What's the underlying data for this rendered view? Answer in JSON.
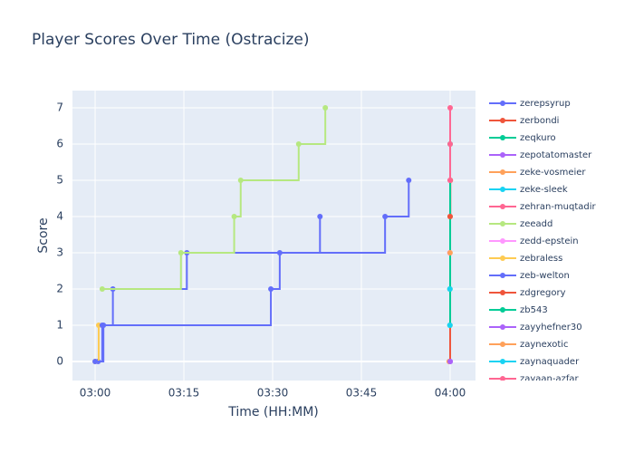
{
  "chart_data": {
    "type": "line",
    "line_shape": "hv",
    "title": "Player Scores Over Time (Ostracize)",
    "x_label": "Time (HH:MM)",
    "y_label": "Score",
    "xlim": [
      "02:56:10",
      "04:04:17"
    ],
    "xticks": [
      "03:00",
      "03:15",
      "03:30",
      "03:45",
      "04:00"
    ],
    "ylim": [
      -0.525,
      7.475
    ],
    "yticks": [
      0,
      1,
      2,
      3,
      4,
      5,
      6,
      7
    ],
    "grid": true,
    "legend": "right",
    "series": [
      {
        "name": "zerepsyrup",
        "color": "#636efa",
        "x": [
          "03:00:30",
          "03:01:24",
          "03:03:00",
          "03:15:30",
          "03:49:00",
          "03:53:00"
        ],
        "values": [
          0,
          1,
          2,
          3,
          4,
          5
        ]
      },
      {
        "name": "zerbondi",
        "color": "#EF553B",
        "x": [
          "03:59:55",
          "04:00:00",
          "04:00:02"
        ],
        "values": [
          0,
          4,
          5
        ]
      },
      {
        "name": "zeqkuro",
        "color": "#00cc96",
        "x": [
          "03:59:58",
          "04:00:00"
        ],
        "values": [
          1,
          6
        ]
      },
      {
        "name": "zepotatomaster",
        "color": "#ab63fa",
        "x": [
          "04:00:01"
        ],
        "values": [
          0
        ]
      },
      {
        "name": "zeke-vosmeier",
        "color": "#FFA15A",
        "x": [
          "03:59:50"
        ],
        "values": [
          0
        ]
      },
      {
        "name": "zeke-sleek",
        "color": "#19d3f3",
        "x": [
          "03:59:57"
        ],
        "values": [
          1
        ]
      },
      {
        "name": "zehran-muqtadir",
        "color": "#FF6692",
        "x": [
          "03:59:59",
          "04:00:00"
        ],
        "values": [
          5,
          7
        ]
      },
      {
        "name": "zeeadd",
        "color": "#B6E880",
        "x": [
          "03:01:12",
          "03:14:30",
          "03:23:30",
          "03:24:36",
          "03:34:24",
          "03:38:54"
        ],
        "values": [
          2,
          3,
          4,
          5,
          6,
          7
        ]
      },
      {
        "name": "zedd-epstein",
        "color": "#FF97FF",
        "x": [
          "03:59:56"
        ],
        "values": [
          3
        ]
      },
      {
        "name": "zebraless",
        "color": "#FECB52",
        "x": [
          "03:00:00",
          "03:00:36"
        ],
        "values": [
          0,
          1
        ]
      },
      {
        "name": "zeb-welton",
        "color": "#636efa",
        "x": [
          "03:00:00",
          "03:01:12",
          "03:29:42",
          "03:31:12",
          "03:38:00"
        ],
        "values": [
          0,
          1,
          2,
          3,
          4
        ]
      },
      {
        "name": "zdgregory",
        "color": "#EF553B",
        "x": [
          "03:59:59"
        ],
        "values": [
          4
        ]
      },
      {
        "name": "zb543",
        "color": "#00cc96",
        "x": [
          "03:59:58"
        ],
        "values": [
          2
        ]
      },
      {
        "name": "zayyhefner30",
        "color": "#ab63fa",
        "x": [
          "04:00:00"
        ],
        "values": [
          0
        ]
      },
      {
        "name": "zaynexotic",
        "color": "#FFA15A",
        "x": [
          "03:59:59"
        ],
        "values": [
          3
        ]
      },
      {
        "name": "zaynaquader",
        "color": "#19d3f3",
        "x": [
          "03:59:57"
        ],
        "values": [
          2
        ]
      },
      {
        "name": "zayaan-azfar",
        "color": "#FF6692",
        "x": [
          "04:00:00"
        ],
        "values": [
          6
        ]
      }
    ]
  }
}
